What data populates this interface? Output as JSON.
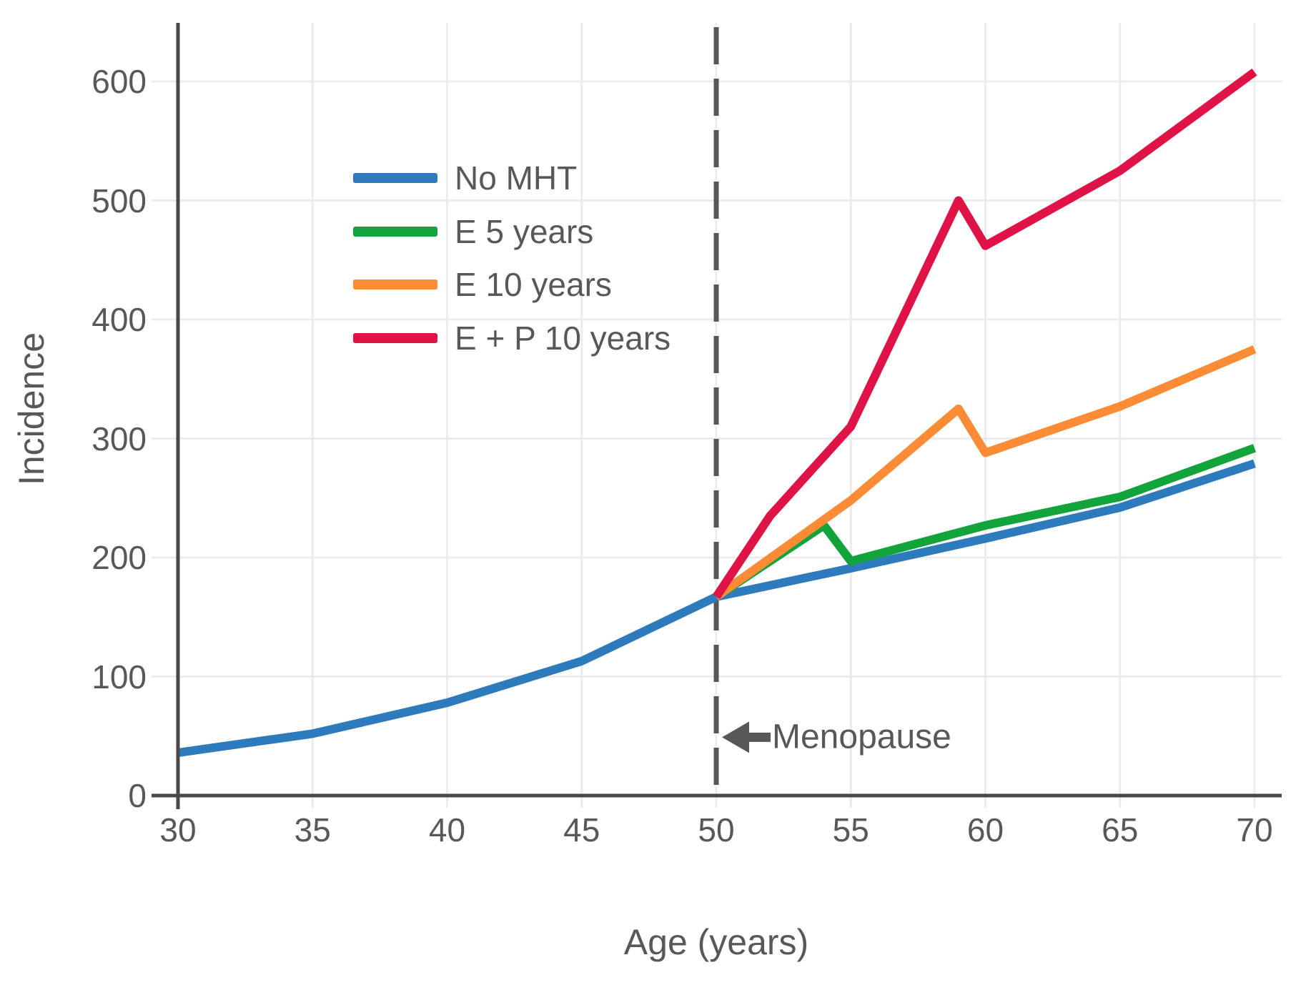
{
  "chart_data": {
    "type": "line",
    "title": "",
    "xlabel": "Age (years)",
    "ylabel": "Incidence",
    "xlim": [
      30,
      71
    ],
    "ylim": [
      0,
      650
    ],
    "x_ticks": [
      30,
      35,
      40,
      45,
      50,
      55,
      60,
      65,
      70
    ],
    "y_ticks": [
      0,
      100,
      200,
      300,
      400,
      500,
      600
    ],
    "grid": true,
    "legend_position": "upper-left-inside",
    "series": [
      {
        "name": "No MHT",
        "color": "#2d7bbd",
        "points": [
          [
            30,
            36
          ],
          [
            35,
            52
          ],
          [
            40,
            78
          ],
          [
            45,
            113
          ],
          [
            50,
            167
          ],
          [
            55,
            191
          ],
          [
            60,
            216
          ],
          [
            65,
            242
          ],
          [
            70,
            279
          ]
        ]
      },
      {
        "name": "E 5 years",
        "color": "#12a43b",
        "points": [
          [
            50,
            167
          ],
          [
            54,
            227
          ],
          [
            55,
            197
          ],
          [
            60,
            227
          ],
          [
            65,
            251
          ],
          [
            70,
            292
          ]
        ]
      },
      {
        "name": "E 10 years",
        "color": "#fb8c35",
        "points": [
          [
            50,
            167
          ],
          [
            55,
            248
          ],
          [
            59,
            325
          ],
          [
            60,
            288
          ],
          [
            65,
            327
          ],
          [
            70,
            375
          ]
        ]
      },
      {
        "name": "E + P 10 years",
        "color": "#e01347",
        "points": [
          [
            50,
            167
          ],
          [
            52,
            235
          ],
          [
            55,
            310
          ],
          [
            59,
            500
          ],
          [
            60,
            462
          ],
          [
            65,
            525
          ],
          [
            70,
            608
          ]
        ]
      }
    ],
    "annotations": {
      "label": "Menopause",
      "line_x": 50,
      "line_style": "dashed",
      "arrow_direction": "left",
      "arrow_tip_x": 50,
      "arrow_tip_y": 49
    },
    "colors": {
      "axis": "#48484a",
      "grid": "#ececec",
      "text": "#58585a",
      "dashed_line": "#58585b"
    }
  }
}
